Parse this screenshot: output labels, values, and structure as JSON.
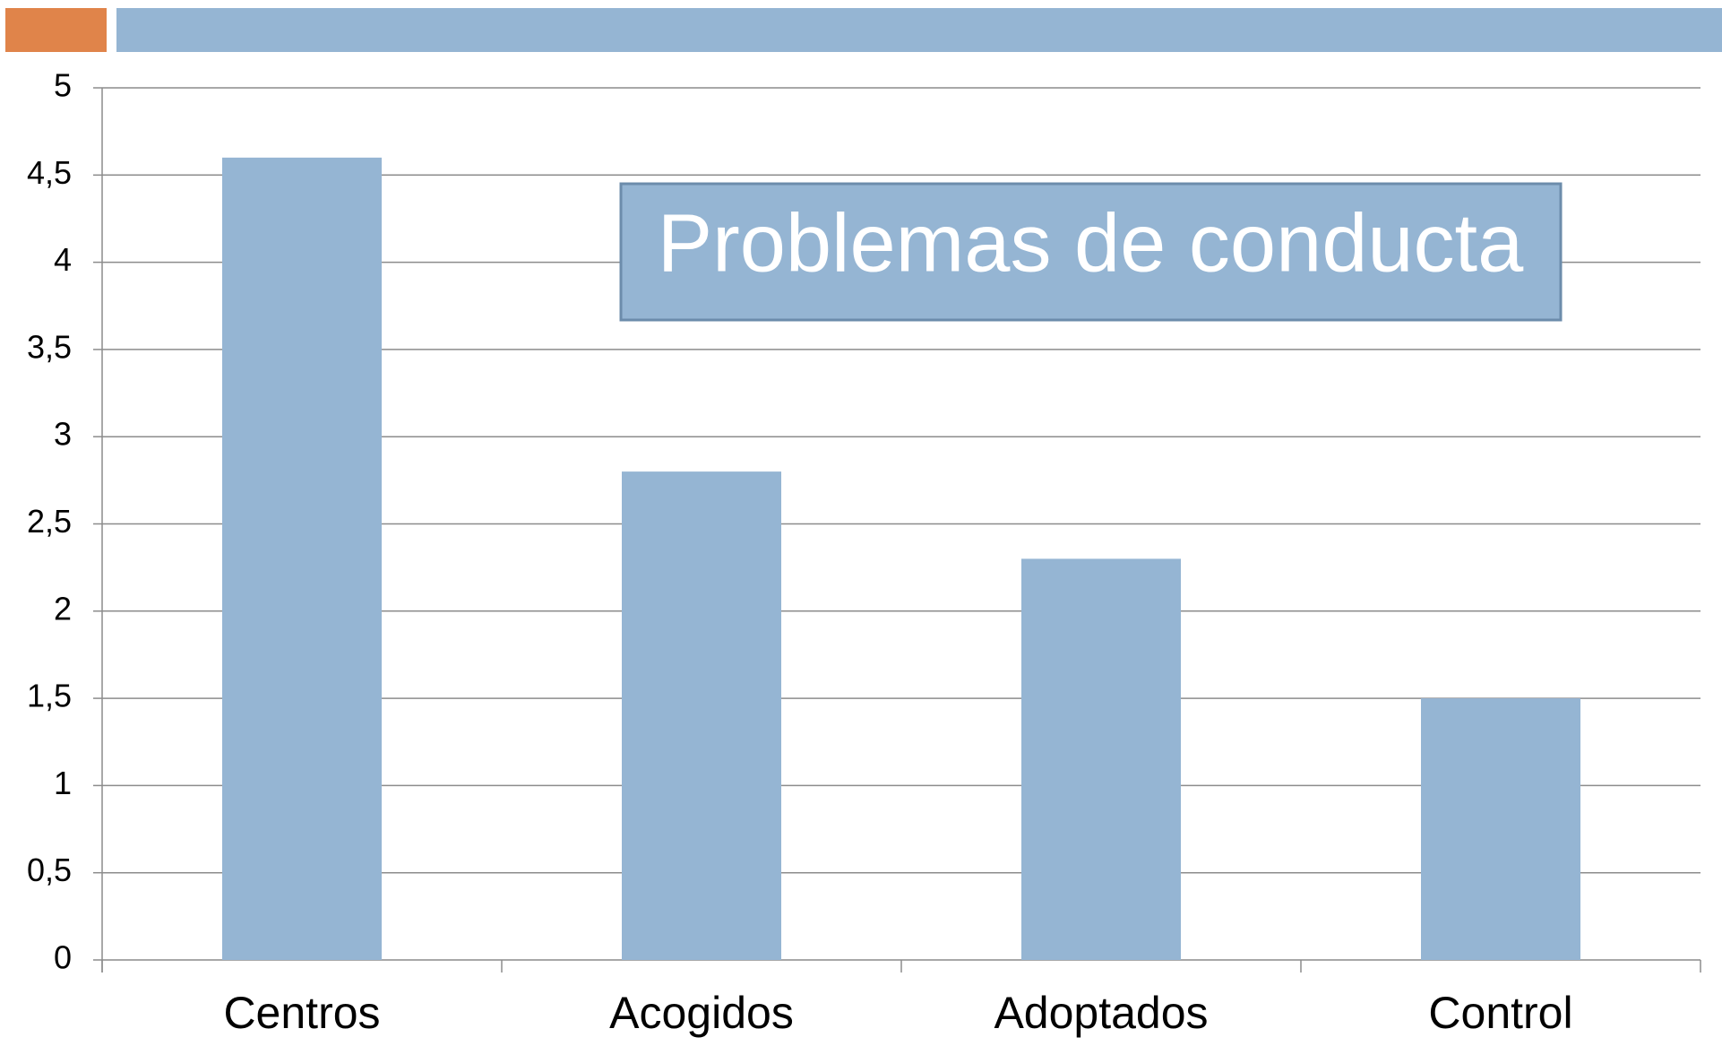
{
  "chart_data": {
    "type": "bar",
    "title": "Problemas de conducta",
    "categories": [
      "Centros",
      "Acogidos",
      "Adoptados",
      "Control"
    ],
    "values": [
      4.6,
      2.8,
      2.3,
      1.5
    ],
    "color": "#95b5d3",
    "ylim": [
      0,
      5
    ],
    "yticks": [
      0,
      {
        "value": 0.5,
        "label": "0,5"
      },
      1,
      {
        "value": 1.5,
        "label": "1,5"
      },
      2,
      {
        "value": 2.5,
        "label": "2,5"
      },
      3,
      {
        "value": 3.5,
        "label": "3,5"
      },
      4,
      {
        "value": 4.5,
        "label": "4,5"
      },
      5
    ],
    "grid": true
  }
}
